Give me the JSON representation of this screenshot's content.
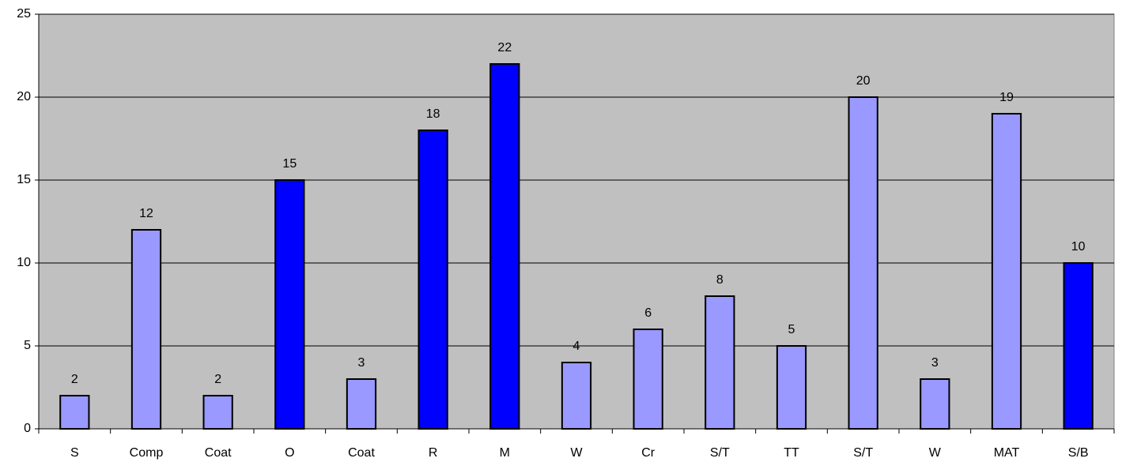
{
  "chart_data": {
    "type": "bar",
    "categories": [
      "S",
      "Comp",
      "Coat",
      "O",
      "Coat",
      "R",
      "M",
      "W",
      "Cr",
      "S/T",
      "TT",
      "S/T",
      "W",
      "MAT",
      "S/B"
    ],
    "values": [
      2,
      12,
      2,
      15,
      3,
      18,
      22,
      4,
      6,
      8,
      5,
      20,
      3,
      19,
      10
    ],
    "colors": [
      "#9999ff",
      "#9999ff",
      "#9999ff",
      "#0000ff",
      "#9999ff",
      "#0000ff",
      "#0000ff",
      "#9999ff",
      "#9999ff",
      "#9999ff",
      "#9999ff",
      "#9999ff",
      "#9999ff",
      "#9999ff",
      "#0000ff"
    ],
    "ylim": [
      0,
      25
    ],
    "yticks": [
      0,
      5,
      10,
      15,
      20,
      25
    ],
    "grid": true,
    "background": "#c0c0c0"
  }
}
